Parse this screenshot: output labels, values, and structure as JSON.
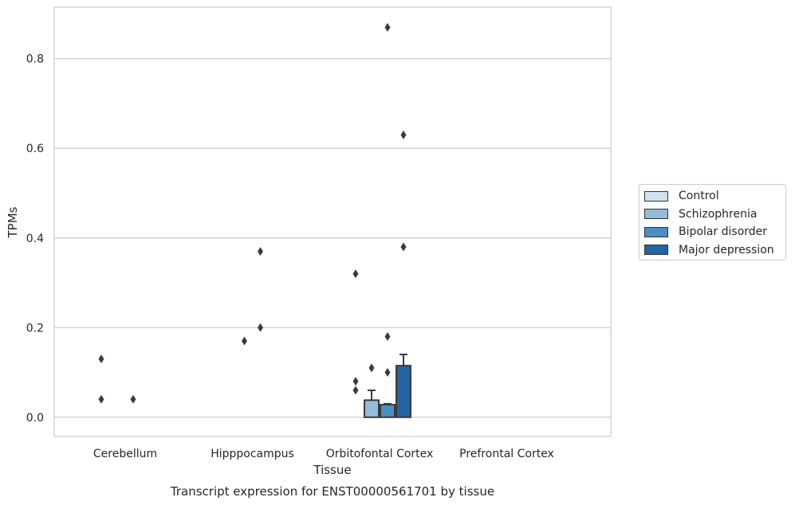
{
  "chart_data": {
    "type": "bar",
    "title": "Transcript expression for ENST00000561701 by tissue",
    "xlabel": "Tissue",
    "ylabel": "TPMs",
    "ylim": [
      -0.043,
      0.915
    ],
    "yticks": [
      "0.0",
      "0.2",
      "0.4",
      "0.6",
      "0.8"
    ],
    "categories": [
      "Cerebellum",
      "Hipppocampus",
      "Orbitofontal Cortex",
      "Prefrontal Cortex"
    ],
    "grid": true,
    "legend_position": "right",
    "series": [
      {
        "name": "Control",
        "color": "#d1e1f0",
        "values": [
          0.0,
          0.0,
          0.0,
          0.0
        ],
        "error": [
          0.0,
          0.0,
          0.0,
          0.0
        ],
        "outliers": [
          [
            0.13,
            0.04
          ],
          [],
          [
            0.32,
            0.08,
            0.06
          ],
          []
        ]
      },
      {
        "name": "Schizophrenia",
        "color": "#93bcdb",
        "values": [
          0.0,
          0.0,
          0.038,
          0.0
        ],
        "error": [
          0.0,
          0.0,
          0.022,
          0.0
        ],
        "outliers": [
          [],
          [
            0.17
          ],
          [
            0.11
          ],
          []
        ]
      },
      {
        "name": "Bipolar disorder",
        "color": "#4a8fc3",
        "values": [
          0.0,
          0.0,
          0.028,
          0.0
        ],
        "error": [
          0.0,
          0.0,
          0.002,
          0.0
        ],
        "outliers": [
          [
            0.04
          ],
          [
            0.37,
            0.2
          ],
          [
            0.87,
            0.18,
            0.1
          ],
          []
        ]
      },
      {
        "name": "Major depression",
        "color": "#2364a6",
        "values": [
          0.0,
          0.0,
          0.115,
          0.0
        ],
        "error": [
          0.0,
          0.0,
          0.025,
          0.0
        ],
        "outliers": [
          [],
          [],
          [
            0.63,
            0.38
          ],
          []
        ]
      }
    ]
  }
}
